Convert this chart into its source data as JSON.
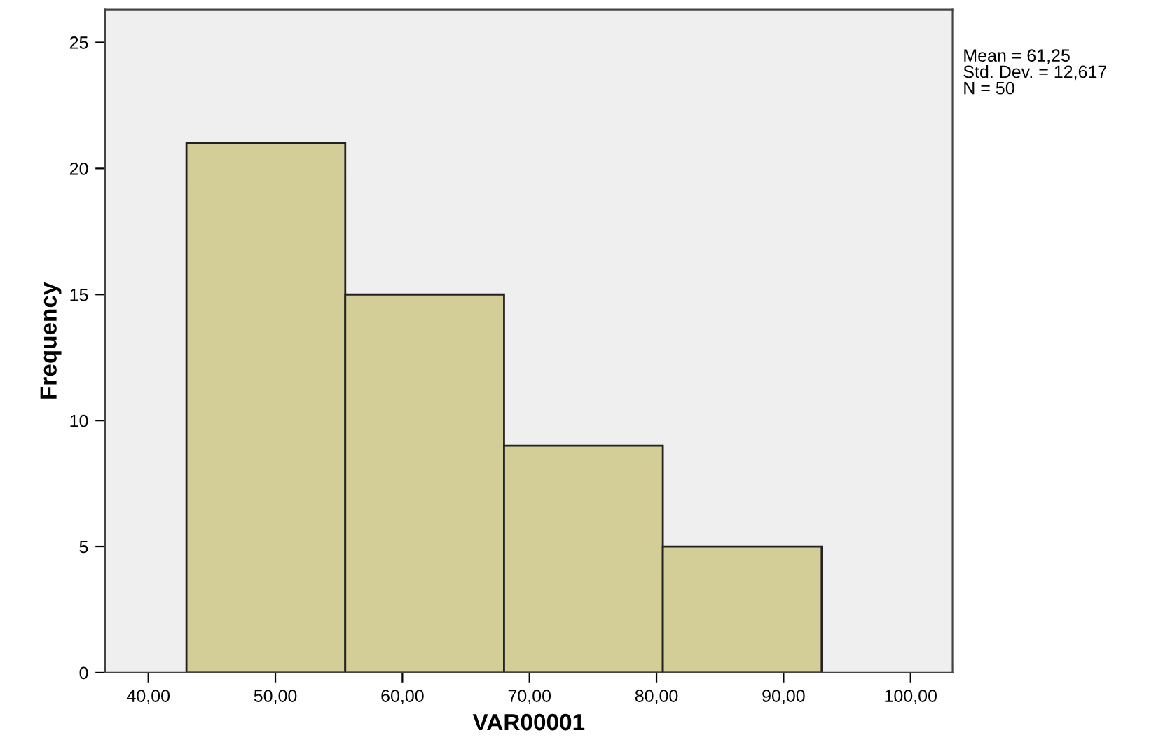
{
  "chart_data": {
    "type": "histogram",
    "xlabel": "VAR00001",
    "ylabel": "Frequency",
    "bins": [
      43,
      55.5,
      68,
      80.5,
      93
    ],
    "values": [
      21,
      15,
      9,
      5
    ],
    "color": "#d3ce97",
    "xlim": [
      36.6,
      103.3
    ],
    "xticks": [
      {
        "value": 40,
        "label": "40,00"
      },
      {
        "value": 50,
        "label": "50,00"
      },
      {
        "value": 60,
        "label": "60,00"
      },
      {
        "value": 70,
        "label": "70,00"
      },
      {
        "value": 80,
        "label": "80,00"
      },
      {
        "value": 90,
        "label": "90,00"
      },
      {
        "value": 100,
        "label": "100,00"
      }
    ],
    "ylim": [
      0,
      26.3
    ],
    "yticks": [
      0,
      5,
      10,
      15,
      20,
      25
    ],
    "grid": false,
    "annotations": [
      "Mean = 61,25",
      "Std. Dev. = 12,617",
      "N = 50"
    ]
  }
}
